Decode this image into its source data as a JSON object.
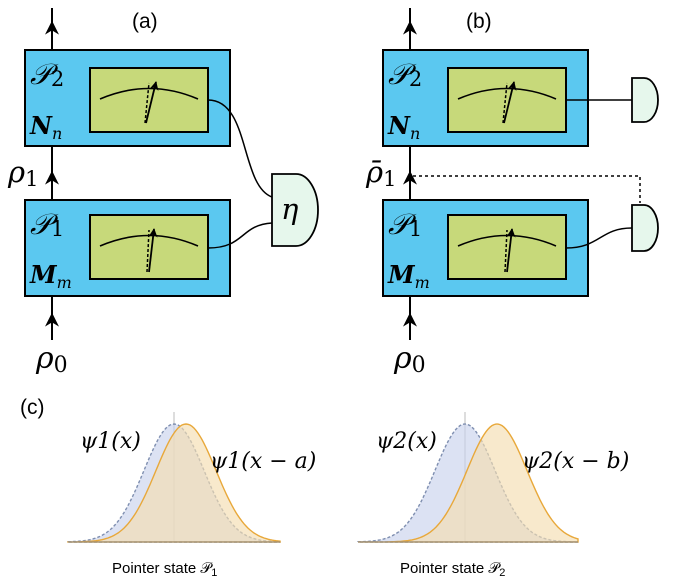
{
  "panels": {
    "a": {
      "label": "(a)",
      "top_box": {
        "process": "𝒫",
        "process_sub": "2",
        "op": "N",
        "op_sub": "n"
      },
      "bottom_box": {
        "process": "𝒫",
        "process_sub": "1",
        "op": "M",
        "op_sub": "m"
      },
      "mid_state": {
        "sym": "ρ",
        "sub": "1"
      },
      "input_state": {
        "sym": "ρ",
        "sub": "0"
      },
      "detector_label": "η"
    },
    "b": {
      "label": "(b)",
      "top_box": {
        "process": "𝒫",
        "process_sub": "2",
        "op": "N",
        "op_sub": "n"
      },
      "bottom_box": {
        "process": "𝒫",
        "process_sub": "1",
        "op": "M",
        "op_sub": "m"
      },
      "mid_state": {
        "sym": "ρ̄",
        "sub": "1"
      },
      "input_state": {
        "sym": "ρ",
        "sub": "0"
      }
    },
    "c": {
      "label": "(c)",
      "left": {
        "psi_ref": "ψ1(x)",
        "psi_shift": "ψ1(x − a)",
        "caption": "Pointer state 𝒫",
        "caption_sub": "1"
      },
      "right": {
        "psi_ref": "ψ2(x)",
        "psi_shift": "ψ2(x − b)",
        "caption": "Pointer state 𝒫",
        "caption_sub": "2"
      }
    }
  },
  "colors": {
    "box_fill": "#5bc8f0",
    "meter_fill": "#c7d97a",
    "detector_fill": "#e6f7ec",
    "gauss_ref_fill": "#c9d3ec",
    "gauss_ref_stroke": "#7f8fb0",
    "gauss_shift_fill": "#f5ddb0",
    "gauss_shift_stroke": "#e8a83a",
    "overlap_fill": "#cfc6ad"
  }
}
